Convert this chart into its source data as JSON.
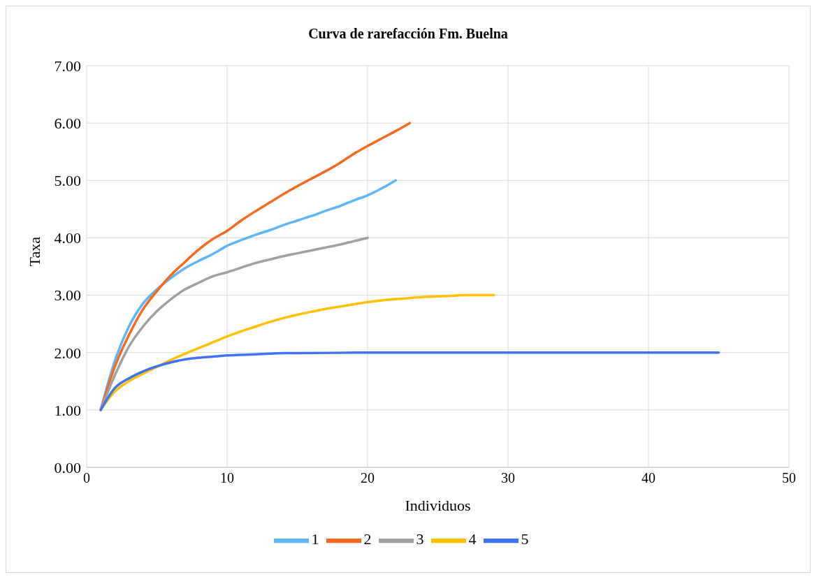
{
  "chart_data": {
    "type": "line",
    "title": "Curva de rarefacción Fm. Buelna",
    "xlabel": "Individuos",
    "ylabel": "Taxa",
    "xlim": [
      0,
      50
    ],
    "xticks": [
      0,
      10,
      20,
      30,
      40,
      50
    ],
    "ylim": [
      0,
      7
    ],
    "yticks": [
      {
        "value": 0,
        "label": "0.00"
      },
      {
        "value": 1,
        "label": "1.00"
      },
      {
        "value": 2,
        "label": "2.00"
      },
      {
        "value": 3,
        "label": "3.00"
      },
      {
        "value": 4,
        "label": "4.00"
      },
      {
        "value": 5,
        "label": "5.00"
      },
      {
        "value": 6,
        "label": "6.00"
      },
      {
        "value": 7,
        "label": "7.00"
      }
    ],
    "grid": true,
    "legend": "bottom",
    "marker": "none",
    "line_style": "solid",
    "series": [
      {
        "name": "1",
        "color": "#5eb5f7",
        "x": [
          1,
          2,
          3,
          4,
          5,
          6,
          7,
          8,
          9,
          10,
          11,
          12,
          13,
          14,
          15,
          16,
          17,
          18,
          19,
          20,
          21,
          22
        ],
        "values": [
          1,
          1.85,
          2.45,
          2.85,
          3.1,
          3.3,
          3.47,
          3.6,
          3.72,
          3.86,
          3.96,
          4.05,
          4.13,
          4.22,
          4.3,
          4.38,
          4.47,
          4.55,
          4.65,
          4.74,
          4.86,
          5.0
        ]
      },
      {
        "name": "2",
        "color": "#f46a1f",
        "x": [
          1,
          2,
          3,
          4,
          5,
          6,
          7,
          8,
          9,
          10,
          11,
          12,
          13,
          14,
          15,
          16,
          17,
          18,
          19,
          20,
          21,
          22,
          23
        ],
        "values": [
          1,
          1.75,
          2.3,
          2.75,
          3.07,
          3.35,
          3.58,
          3.8,
          3.98,
          4.12,
          4.3,
          4.46,
          4.61,
          4.76,
          4.9,
          5.03,
          5.16,
          5.3,
          5.46,
          5.6,
          5.73,
          5.86,
          6.0
        ]
      },
      {
        "name": "3",
        "color": "#a0a0a0",
        "x": [
          1,
          2,
          3,
          4,
          5,
          6,
          7,
          8,
          9,
          10,
          11,
          12,
          13,
          14,
          15,
          16,
          17,
          18,
          19,
          20
        ],
        "values": [
          1,
          1.6,
          2.1,
          2.45,
          2.72,
          2.93,
          3.1,
          3.22,
          3.33,
          3.4,
          3.48,
          3.56,
          3.62,
          3.68,
          3.73,
          3.78,
          3.83,
          3.88,
          3.94,
          4.0
        ]
      },
      {
        "name": "4",
        "color": "#ffc000",
        "x": [
          1,
          2,
          3,
          4,
          5,
          6,
          7,
          8,
          9,
          10,
          11,
          12,
          13,
          14,
          15,
          16,
          17,
          18,
          19,
          20,
          21,
          22,
          23,
          24,
          25,
          26,
          27,
          28,
          29
        ],
        "values": [
          1,
          1.32,
          1.5,
          1.63,
          1.75,
          1.87,
          1.98,
          2.08,
          2.18,
          2.28,
          2.37,
          2.45,
          2.53,
          2.6,
          2.66,
          2.71,
          2.76,
          2.8,
          2.84,
          2.88,
          2.91,
          2.93,
          2.95,
          2.97,
          2.98,
          2.99,
          3.0,
          3.0,
          3.0
        ]
      },
      {
        "name": "5",
        "color": "#3f72f5",
        "x": [
          1,
          2,
          3,
          4,
          5,
          6,
          7,
          8,
          9,
          10,
          11,
          12,
          13,
          14,
          15,
          20,
          25,
          30,
          35,
          40,
          45
        ],
        "values": [
          1,
          1.38,
          1.55,
          1.67,
          1.76,
          1.83,
          1.88,
          1.91,
          1.93,
          1.95,
          1.96,
          1.97,
          1.98,
          1.99,
          1.99,
          2.0,
          2.0,
          2.0,
          2.0,
          2.0,
          2.0
        ]
      }
    ]
  }
}
